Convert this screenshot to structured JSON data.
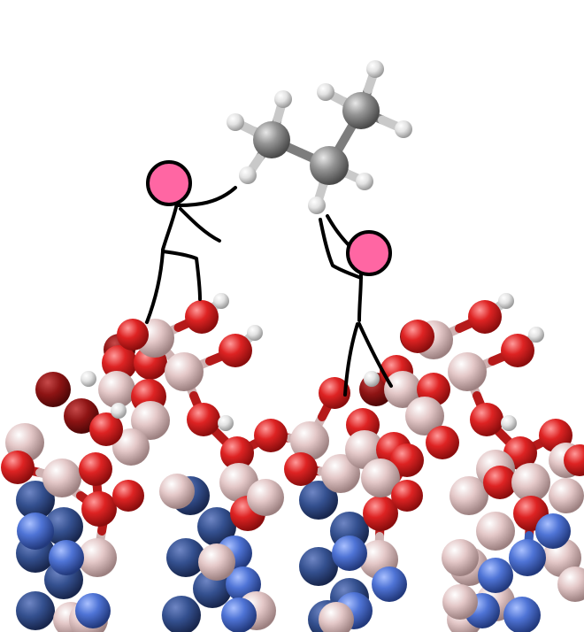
{
  "colors": {
    "background": "#ffffff",
    "carbon": "#8f8f8f",
    "hydrogen": "#e6e6e6",
    "oxygen": "#d91f1f",
    "oxygen_dark": "#8e1010",
    "boron": "#e3c4c4",
    "nitrogen": "#4d72d4",
    "nitrogen_dark": "#2e4a96",
    "figure_head": "#ff66a3",
    "stroke": "#000000"
  },
  "icons": {
    "molecule": "butane-molecule-icon",
    "figure": "stick-figure-icon",
    "surface": "boron-nitride-surface-icon"
  }
}
